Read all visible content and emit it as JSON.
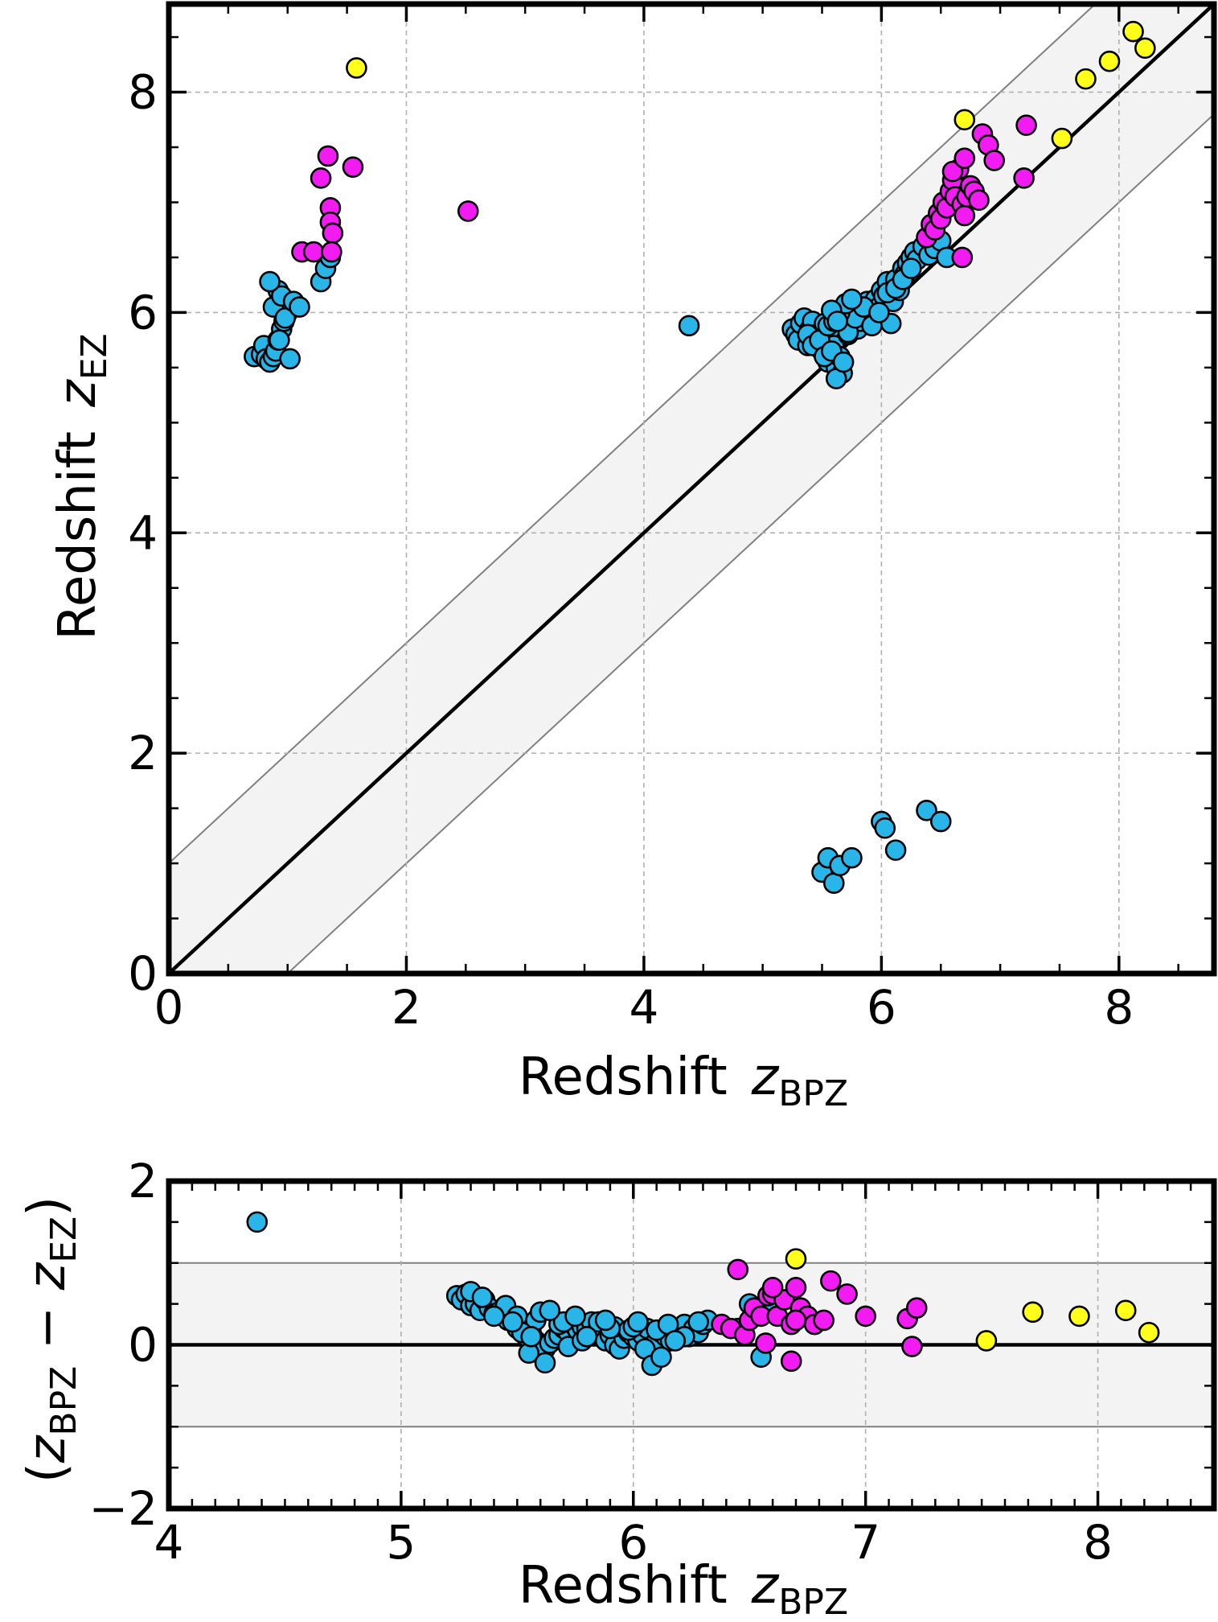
{
  "chart_data": [
    {
      "type": "scatter",
      "panel": "top",
      "xlabel": "Redshift",
      "xlabel_var": "z",
      "xlabel_sub": "BPZ",
      "ylabel": "Redshift",
      "ylabel_var": "z",
      "ylabel_sub": "EZ",
      "xlim": [
        0,
        8.8
      ],
      "ylim": [
        0,
        8.8
      ],
      "x_ticks": [
        0,
        2,
        4,
        6,
        8
      ],
      "y_ticks": [
        0,
        2,
        4,
        6,
        8
      ],
      "x_tick_labels": [
        "0",
        "2",
        "4",
        "6",
        "8"
      ],
      "y_tick_labels": [
        "0",
        "2",
        "4",
        "6",
        "8"
      ],
      "grid": true,
      "reference_line": "y = x",
      "band_halfwidth": 1.0,
      "colors": {
        "cyan": "#29b5e8",
        "magenta": "#f21cf2",
        "yellow": "#ffff1a",
        "band": "#f3f3f3",
        "band_edge": "#808080"
      },
      "series": [
        {
          "color": "cyan",
          "x": [
            0.72,
            0.78,
            0.8,
            0.82,
            0.85,
            0.88,
            0.9,
            0.92,
            0.95,
            0.97,
            1.0,
            1.02,
            0.88,
            0.92,
            0.95,
            0.98,
            1.05,
            1.1,
            0.85,
            0.93,
            1.28,
            1.32,
            1.36,
            4.38,
            5.25,
            5.28,
            5.3,
            5.32,
            5.35,
            5.38,
            5.4,
            5.42,
            5.45,
            5.47,
            5.5,
            5.52,
            5.55,
            5.57,
            5.6,
            5.62,
            5.65,
            5.67,
            5.7,
            5.72,
            5.75,
            5.78,
            5.8,
            5.82,
            5.85,
            5.88,
            5.9,
            5.92,
            5.95,
            5.98,
            6.0,
            6.02,
            6.05,
            6.08,
            6.1,
            6.12,
            6.15,
            6.18,
            6.2,
            6.22,
            6.25,
            6.28,
            6.3,
            6.35,
            6.4,
            6.45,
            6.5,
            6.55,
            5.38,
            5.42,
            5.48,
            5.52,
            5.58,
            5.62,
            5.68,
            5.72,
            5.78,
            5.85,
            5.92,
            5.98,
            6.05,
            6.12,
            6.18,
            6.25,
            5.55,
            5.6,
            5.65,
            5.7,
            5.75,
            5.58,
            5.63,
            5.5,
            5.55,
            5.6,
            5.65,
            5.75,
            6.0,
            6.03,
            6.12,
            6.38,
            6.5
          ],
          "y": [
            5.6,
            5.62,
            5.7,
            5.58,
            5.55,
            5.6,
            5.65,
            5.75,
            5.85,
            5.92,
            6.0,
            5.58,
            6.05,
            6.2,
            6.15,
            5.95,
            6.1,
            6.05,
            6.28,
            5.75,
            6.28,
            6.4,
            6.5,
            5.88,
            5.85,
            5.8,
            5.75,
            5.9,
            5.95,
            5.7,
            5.85,
            5.92,
            5.8,
            5.75,
            5.65,
            5.9,
            5.55,
            5.85,
            5.7,
            5.5,
            5.6,
            5.45,
            5.9,
            5.8,
            5.95,
            6.0,
            5.85,
            5.92,
            6.05,
            6.1,
            5.98,
            6.0,
            6.12,
            6.05,
            6.2,
            6.15,
            6.28,
            5.9,
            6.1,
            6.3,
            6.2,
            6.4,
            6.35,
            6.45,
            6.5,
            6.55,
            6.48,
            6.6,
            6.52,
            6.58,
            6.65,
            6.5,
            5.8,
            5.7,
            5.75,
            5.6,
            5.65,
            5.4,
            5.55,
            5.82,
            5.95,
            6.05,
            5.88,
            6.0,
            6.18,
            6.22,
            6.3,
            6.4,
            5.88,
            5.92,
            6.0,
            6.08,
            6.12,
            6.02,
            5.92,
            0.92,
            1.05,
            0.82,
            0.98,
            1.05,
            1.38,
            1.32,
            1.12,
            1.48,
            1.38
          ]
        },
        {
          "color": "magenta",
          "x": [
            1.12,
            1.22,
            1.28,
            1.34,
            1.36,
            1.36,
            1.38,
            1.37,
            1.55,
            2.52,
            6.38,
            6.42,
            6.45,
            6.48,
            6.5,
            6.52,
            6.55,
            6.58,
            6.6,
            6.62,
            6.65,
            6.68,
            6.7,
            6.72,
            6.75,
            6.78,
            6.82,
            6.85,
            6.9,
            6.95,
            7.2,
            7.22,
            6.68,
            6.6,
            6.7
          ],
          "y": [
            6.55,
            6.55,
            7.22,
            7.42,
            6.95,
            6.82,
            6.72,
            6.55,
            7.32,
            6.92,
            6.68,
            6.8,
            6.75,
            6.9,
            6.85,
            7.0,
            6.95,
            7.1,
            7.2,
            7.05,
            7.3,
            6.98,
            6.88,
            7.05,
            7.15,
            7.1,
            7.02,
            7.62,
            7.52,
            7.38,
            7.22,
            7.7,
            6.5,
            7.28,
            7.4
          ]
        },
        {
          "color": "yellow",
          "x": [
            1.58,
            6.7,
            7.52,
            7.72,
            7.92,
            8.12,
            8.22
          ],
          "y": [
            8.22,
            7.75,
            7.58,
            8.12,
            8.28,
            8.55,
            8.4
          ]
        }
      ]
    },
    {
      "type": "scatter",
      "panel": "bottom",
      "xlabel": "Redshift",
      "xlabel_var": "z",
      "xlabel_sub": "BPZ",
      "ylabel_parts": [
        "(",
        "z",
        "BPZ",
        " − ",
        "z",
        "EZ",
        ")"
      ],
      "xlim": [
        4,
        8.5
      ],
      "ylim": [
        -2,
        2
      ],
      "x_ticks": [
        4,
        5,
        6,
        7,
        8
      ],
      "y_ticks": [
        -2,
        0,
        2
      ],
      "x_tick_labels": [
        "4",
        "5",
        "6",
        "7",
        "8"
      ],
      "y_tick_labels": [
        "−2",
        "0",
        "2"
      ],
      "grid": true,
      "reference_line": "y = 0",
      "band_halfwidth": 1.0,
      "series": [
        {
          "color": "cyan",
          "x": [
            4.38,
            5.24,
            5.26,
            5.28,
            5.3,
            5.32,
            5.34,
            5.36,
            5.38,
            5.4,
            5.42,
            5.44,
            5.46,
            5.48,
            5.5,
            5.52,
            5.54,
            5.56,
            5.58,
            5.6,
            5.62,
            5.64,
            5.66,
            5.68,
            5.7,
            5.72,
            5.74,
            5.76,
            5.78,
            5.8,
            5.82,
            5.84,
            5.86,
            5.88,
            5.9,
            5.92,
            5.94,
            5.96,
            5.98,
            6.0,
            6.02,
            6.04,
            6.06,
            6.08,
            6.1,
            6.12,
            6.14,
            6.16,
            6.18,
            6.2,
            6.22,
            6.24,
            6.26,
            6.28,
            6.3,
            6.32,
            5.3,
            5.35,
            5.45,
            5.5,
            5.55,
            5.58,
            5.62,
            5.68,
            5.72,
            5.78,
            5.85,
            5.92,
            5.98,
            6.05,
            6.1,
            6.15,
            6.22,
            5.52,
            5.6,
            5.7,
            5.8,
            5.9,
            6.0,
            6.08,
            6.18,
            6.28,
            5.4,
            5.48,
            5.56,
            5.64,
            5.75,
            5.88,
            6.02,
            6.12,
            6.55,
            6.6,
            6.5,
            6.45
          ],
          "y": [
            1.5,
            0.6,
            0.55,
            0.62,
            0.48,
            0.5,
            0.42,
            0.55,
            0.45,
            0.38,
            0.4,
            0.35,
            0.3,
            0.32,
            0.2,
            0.25,
            0.1,
            0.15,
            0.05,
            0.0,
            -0.05,
            0.02,
            0.08,
            0.12,
            0.2,
            0.15,
            0.25,
            0.18,
            0.22,
            0.2,
            0.28,
            0.15,
            0.1,
            0.05,
            0.12,
            0.0,
            -0.05,
            0.08,
            0.15,
            0.1,
            0.05,
            0.12,
            0.2,
            -0.1,
            0.05,
            0.15,
            0.1,
            0.05,
            0.2,
            0.15,
            0.25,
            0.1,
            0.2,
            0.15,
            0.25,
            0.3,
            0.65,
            0.58,
            0.48,
            0.35,
            -0.1,
            0.3,
            -0.22,
            0.25,
            -0.02,
            0.05,
            0.28,
            0.22,
            0.18,
            -0.05,
            0.18,
            0.25,
            0.1,
            0.15,
            0.4,
            0.28,
            0.1,
            0.2,
            0.22,
            -0.25,
            0.05,
            0.28,
            0.35,
            0.28,
            0.1,
            0.42,
            0.35,
            0.3,
            0.28,
            -0.15,
            -0.15,
            0.4,
            0.5,
            0.2
          ]
        },
        {
          "color": "magenta",
          "x": [
            6.38,
            6.42,
            6.45,
            6.48,
            6.5,
            6.52,
            6.55,
            6.58,
            6.6,
            6.62,
            6.65,
            6.68,
            6.7,
            6.72,
            6.75,
            6.78,
            6.82,
            6.85,
            6.92,
            7.0,
            7.18,
            7.2,
            7.22,
            6.68,
            6.6,
            6.7,
            6.57
          ],
          "y": [
            0.25,
            0.2,
            0.92,
            0.12,
            0.3,
            0.45,
            0.35,
            0.6,
            0.62,
            0.35,
            0.55,
            0.25,
            0.7,
            0.45,
            0.35,
            0.25,
            0.3,
            0.78,
            0.62,
            0.35,
            0.32,
            -0.02,
            0.45,
            -0.2,
            0.7,
            0.3,
            0.02
          ]
        },
        {
          "color": "yellow",
          "x": [
            6.7,
            7.52,
            7.72,
            7.92,
            8.12,
            8.22
          ],
          "y": [
            1.05,
            0.05,
            0.4,
            0.35,
            0.42,
            0.15
          ]
        }
      ]
    }
  ]
}
